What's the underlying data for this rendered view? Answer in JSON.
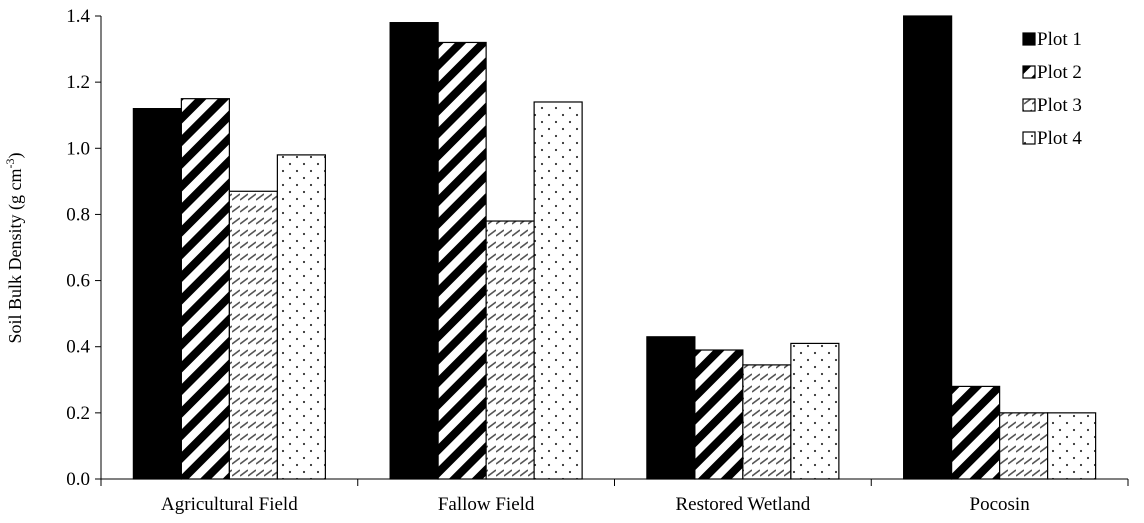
{
  "chart_data": {
    "type": "bar",
    "title": "",
    "xlabel": "",
    "ylabel": {
      "main": "Soil Bulk Density (g cm",
      "sup": "-3",
      "close": ")"
    },
    "ylim": [
      0,
      1.4
    ],
    "yticks": [
      "0.0",
      "0.2",
      "0.4",
      "0.6",
      "0.8",
      "1.0",
      "1.2",
      "1.4"
    ],
    "grid": false,
    "legend_position": "top-right",
    "categories": [
      "Agricultural Field",
      "Fallow Field",
      "Restored Wetland",
      "Pocosin"
    ],
    "series": [
      {
        "name": "Plot 1",
        "pattern": "solid",
        "values": [
          1.12,
          1.38,
          0.43,
          1.4
        ]
      },
      {
        "name": "Plot 2",
        "pattern": "wide-diagonal",
        "values": [
          1.15,
          1.32,
          0.39,
          0.28
        ]
      },
      {
        "name": "Plot 3",
        "pattern": "light-diagonal",
        "values": [
          0.87,
          0.78,
          0.345,
          0.2
        ]
      },
      {
        "name": "Plot 4",
        "pattern": "dots",
        "values": [
          0.98,
          1.14,
          0.41,
          0.2
        ]
      }
    ],
    "colors": {
      "bar_stroke": "#000000",
      "fill_dark": "#000000",
      "fill_light": "#ffffff"
    }
  }
}
